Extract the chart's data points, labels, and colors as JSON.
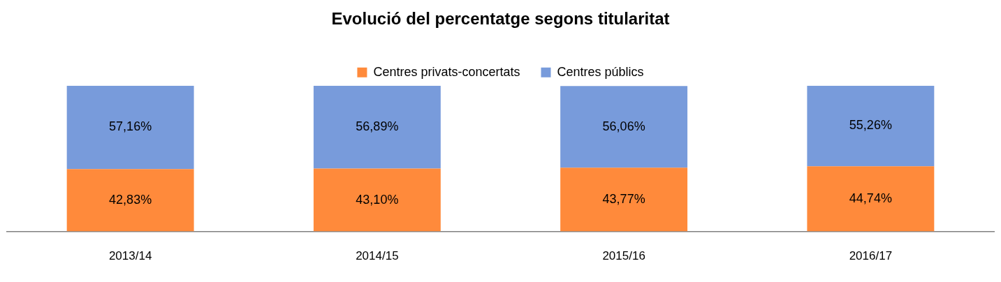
{
  "chart_data": {
    "type": "bar",
    "title": "Evolució del percentatge segons titularitat",
    "categories": [
      "2013/14",
      "2014/15",
      "2015/16",
      "2016/17"
    ],
    "stacked": true,
    "legend": "top",
    "grid": false,
    "series": [
      {
        "name": "Centres privats-concertats",
        "color": "#ff8a3b",
        "values": [
          42.83,
          43.1,
          43.77,
          44.74
        ],
        "value_labels": [
          "42,83%",
          "43,10%",
          "43,77%",
          "44,74%"
        ]
      },
      {
        "name": "Centres públics",
        "color": "#789bdb",
        "values": [
          57.16,
          56.89,
          56.06,
          55.26
        ],
        "value_labels": [
          "57,16%",
          "56,89%",
          "56,06%",
          "55,26%"
        ]
      }
    ]
  }
}
